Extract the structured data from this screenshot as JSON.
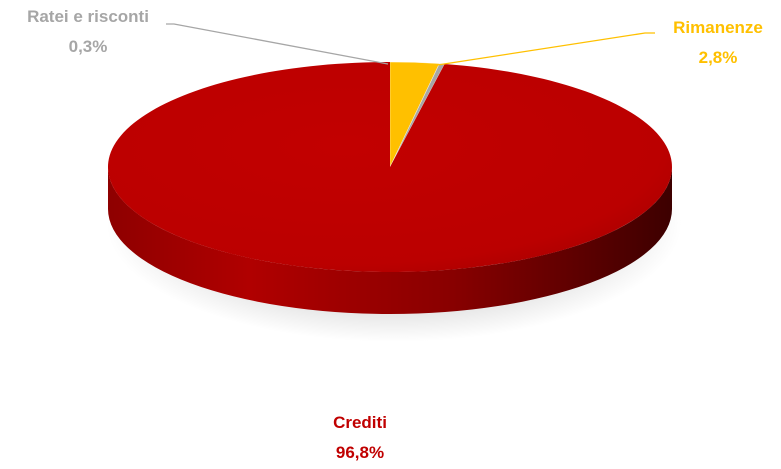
{
  "chart_data": {
    "type": "pie",
    "three_d": true,
    "categories": [
      "Crediti",
      "Rimanenze",
      "Ratei e risconti"
    ],
    "values": [
      96.8,
      2.8,
      0.3
    ],
    "value_labels": [
      "96,8%",
      "2,8%",
      "0,3%"
    ],
    "colors": [
      "#C00000",
      "#FFC000",
      "#A6A6A6"
    ],
    "label_colors": [
      "#C00000",
      "#FFC000",
      "#A6A6A6"
    ],
    "legend": "none",
    "title": ""
  }
}
